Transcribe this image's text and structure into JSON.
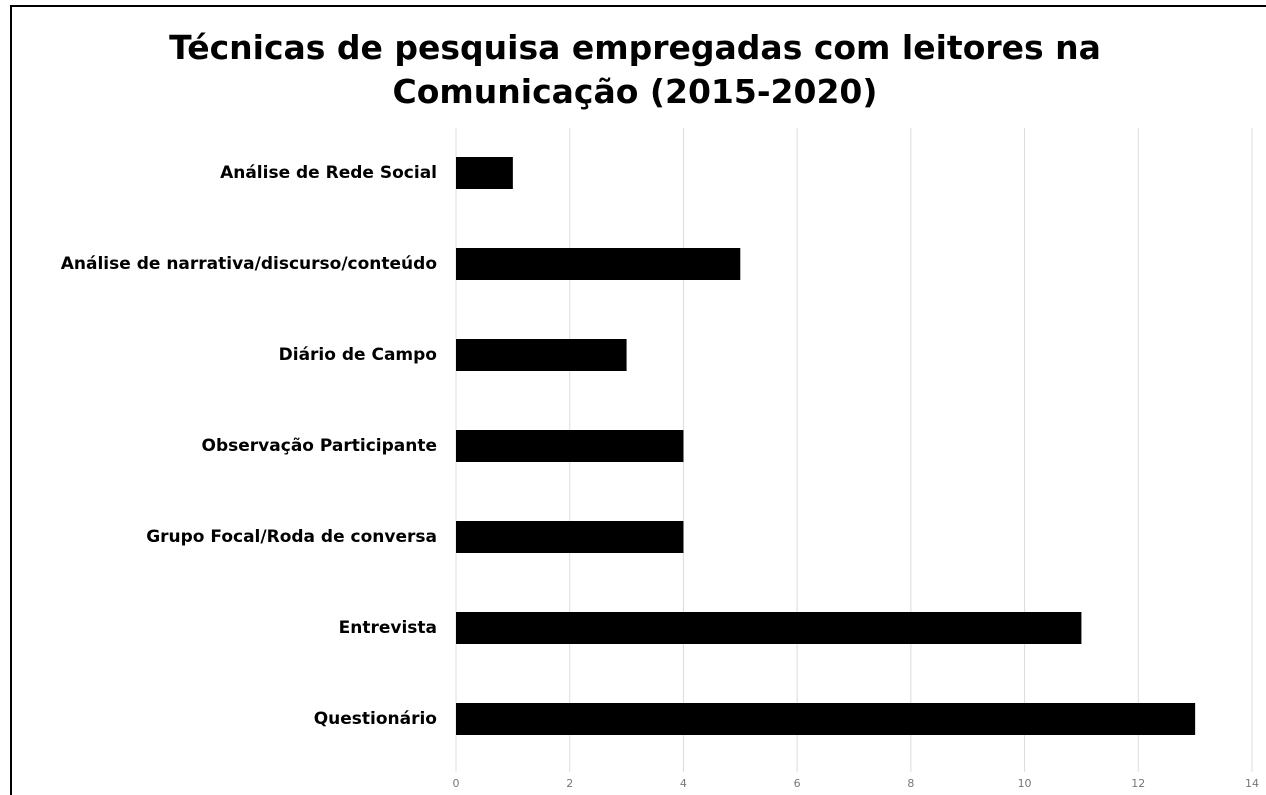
{
  "chart_data": {
    "type": "bar",
    "orientation": "horizontal",
    "title": "Técnicas de pesquisa empregadas com leitores na Comunicação (2015-2020)",
    "categories": [
      "Análise de Rede Social",
      "Análise de narrativa/discurso/conteúdo",
      "Diário de Campo",
      "Observação Participante",
      "Grupo Focal/Roda de conversa",
      "Entrevista",
      "Questionário"
    ],
    "values": [
      1,
      5,
      3,
      4,
      4,
      11,
      13
    ],
    "color": "#000000",
    "xlim": [
      0,
      14
    ],
    "xticks": [
      0,
      2,
      4,
      6,
      8,
      10,
      12,
      14
    ],
    "grid": true
  }
}
